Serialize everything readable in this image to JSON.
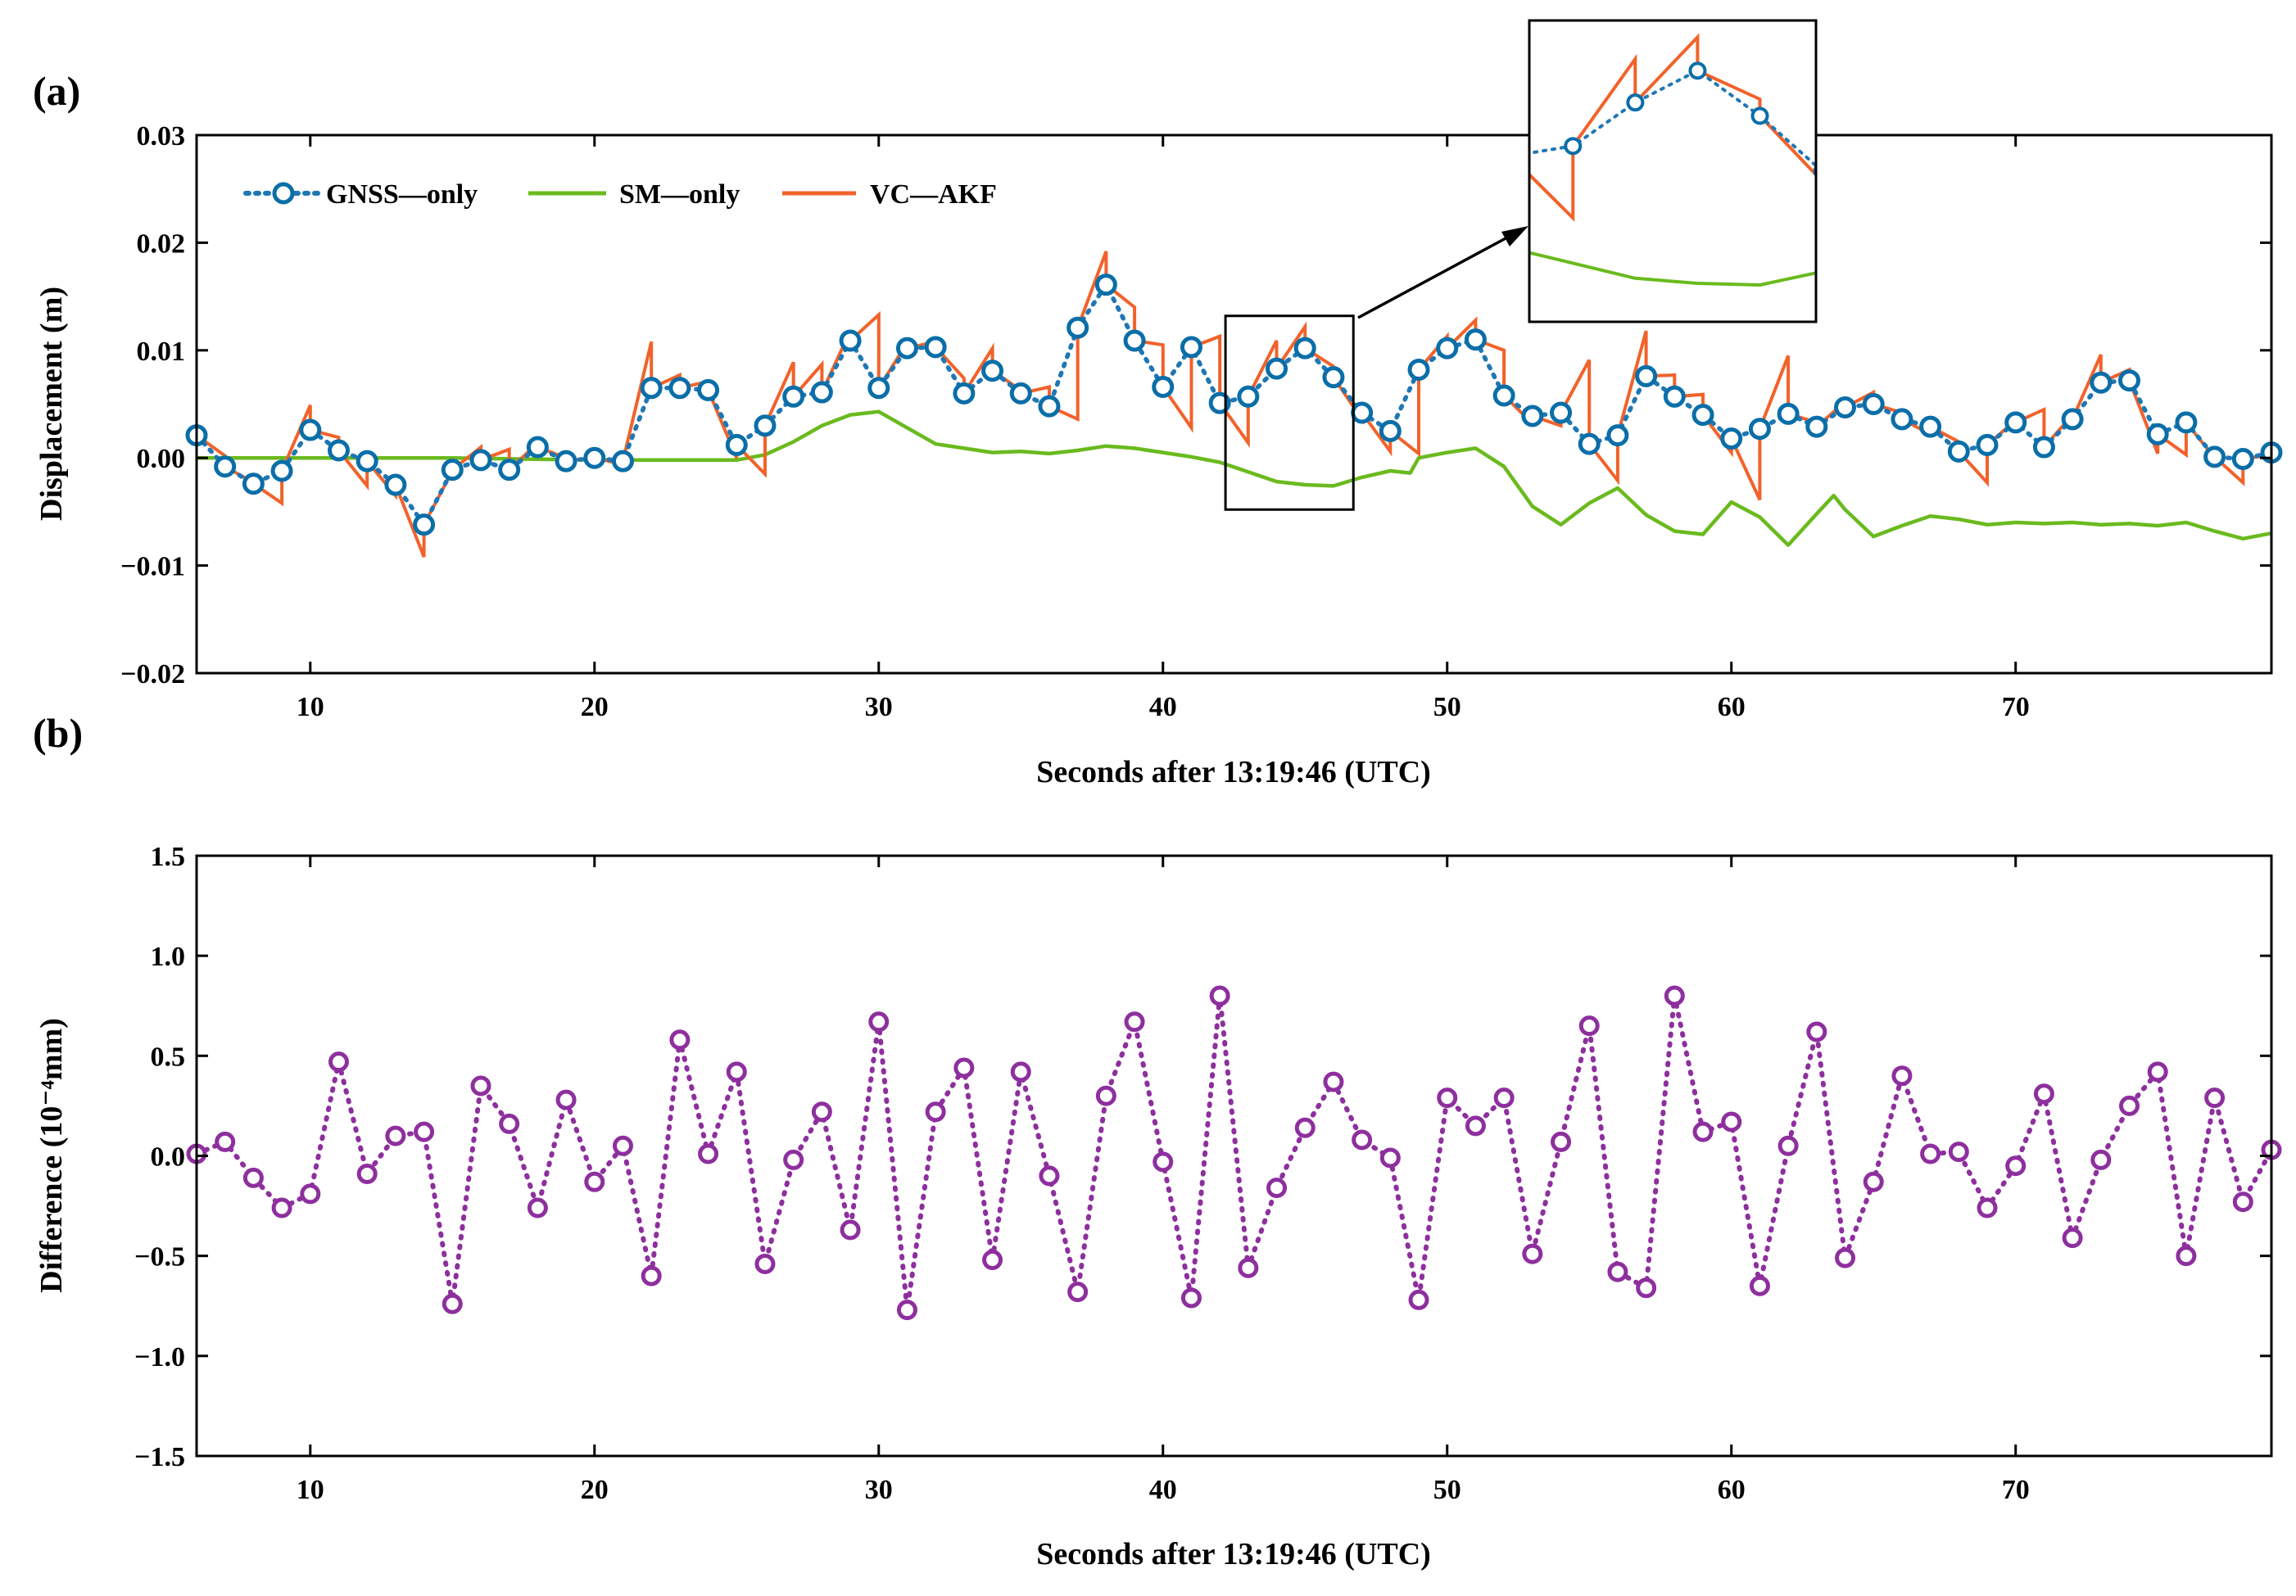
{
  "colors": {
    "gnss": "#1f77b4",
    "gnss_marker": "#0a6ea8",
    "sm": "#6aba1e",
    "vcakf": "#f2622a",
    "diff": "#8e2f9e"
  },
  "chart_data": [
    {
      "type": "line",
      "panel_label": "(a)",
      "xlabel": "Seconds after 13:19:46 (UTC)",
      "ylabel": "Displacement (m)",
      "xlim": [
        6,
        79
      ],
      "ylim": [
        -0.02,
        0.03
      ],
      "x_ticks": [
        10,
        20,
        30,
        40,
        50,
        60,
        70
      ],
      "y_ticks": [
        -0.02,
        -0.01,
        0.0,
        0.01,
        0.02,
        0.03
      ],
      "y_tick_labels": [
        "−0.02",
        "−0.01",
        "0.00",
        "0.01",
        "0.02",
        "0.03"
      ],
      "legend": [
        "GNSS—only",
        "SM—only",
        "VC—AKF"
      ],
      "series": [
        {
          "name": "GNSS—only",
          "style": "dotted line with circle markers",
          "x": [
            6,
            7,
            8,
            9,
            10,
            11,
            12,
            13,
            14,
            15,
            16,
            17,
            18,
            19,
            20,
            21,
            22,
            23,
            24,
            25,
            26,
            27,
            28,
            29,
            30,
            31,
            32,
            33,
            34,
            35,
            36,
            37,
            38,
            39,
            40,
            41,
            42,
            43,
            44,
            45,
            46,
            47,
            48,
            49,
            50,
            51,
            52,
            53,
            54,
            55,
            56,
            57,
            58,
            59,
            60,
            61,
            62,
            63,
            64,
            65,
            66,
            67,
            68,
            69,
            70,
            71,
            72,
            73,
            74,
            75,
            76,
            77,
            78,
            79
          ],
          "values": [
            0.0021,
            -0.0008,
            -0.0024,
            -0.0012,
            0.0026,
            0.0007,
            -0.0003,
            -0.0025,
            -0.0062,
            -0.0011,
            -0.0002,
            -0.0011,
            0.001,
            -0.0003,
            0.0,
            -0.0003,
            0.0065,
            0.0065,
            0.0063,
            0.0012,
            0.003,
            0.0057,
            0.0061,
            0.0109,
            0.0065,
            0.0102,
            0.0103,
            0.006,
            0.0081,
            0.006,
            0.0048,
            0.0121,
            0.0161,
            0.0109,
            0.0066,
            0.0103,
            0.0051,
            0.0057,
            0.0083,
            0.0102,
            0.0075,
            0.0042,
            0.0025,
            0.0082,
            0.0102,
            0.011,
            0.0058,
            0.0039,
            0.0042,
            0.0013,
            0.0021,
            0.0076,
            0.0057,
            0.004,
            0.0018,
            0.0027,
            0.0041,
            0.0029,
            0.0047,
            0.005,
            0.0036,
            0.0029,
            0.0006,
            0.0012,
            0.0033,
            0.001,
            0.0036,
            0.007,
            0.0072,
            0.0022,
            0.0033,
            0.0001,
            -0.0001,
            0.0005
          ]
        },
        {
          "name": "SM—only",
          "style": "solid line",
          "x": [
            6,
            10,
            15,
            20,
            24,
            25,
            26,
            27,
            28,
            29,
            30,
            31,
            32,
            33,
            34,
            35,
            36,
            37,
            38,
            39,
            40,
            41,
            42,
            43,
            44,
            45,
            46,
            46.5,
            47,
            48,
            48.7,
            49,
            50,
            51,
            52,
            53,
            54,
            55,
            56,
            57,
            58,
            59,
            60,
            61,
            62,
            63,
            63.6,
            64,
            65,
            66,
            67,
            68,
            69,
            70,
            71,
            72,
            73,
            74,
            75,
            76,
            77,
            78,
            79
          ],
          "values": [
            0.0,
            0.0,
            0.0,
            -0.0002,
            -0.0002,
            -0.0002,
            0.0003,
            0.0015,
            0.003,
            0.004,
            0.0043,
            0.0028,
            0.0013,
            0.0009,
            0.0005,
            0.0006,
            0.0004,
            0.0007,
            0.0011,
            0.0009,
            0.0005,
            0.0001,
            -0.0004,
            -0.0013,
            -0.0022,
            -0.0025,
            -0.0026,
            -0.0022,
            -0.0018,
            -0.0012,
            -0.0014,
            0.0,
            0.0005,
            0.0009,
            -0.0008,
            -0.0045,
            -0.0062,
            -0.0042,
            -0.0028,
            -0.0053,
            -0.0068,
            -0.0071,
            -0.0041,
            -0.0055,
            -0.0081,
            -0.0052,
            -0.0035,
            -0.0048,
            -0.0073,
            -0.0063,
            -0.0054,
            -0.0057,
            -0.0062,
            -0.006,
            -0.0061,
            -0.006,
            -0.0062,
            -0.0061,
            -0.0063,
            -0.006,
            -0.0068,
            -0.0075,
            -0.007
          ]
        },
        {
          "name": "VC—AKF",
          "style": "solid sawtooth line (drifts between GNSS epochs, resets at each epoch)",
          "drift_to_next": [
            0.0002,
            -0.0023,
            -0.0042,
            0.0049,
            0.0019,
            -0.0026,
            -0.0035,
            -0.0092,
            -0.0012,
            0.001,
            0.0008,
            0.0014,
            0.0,
            0.0,
            -0.0006,
            0.0108,
            0.0077,
            0.0071,
            0.0,
            -0.0015,
            0.0089,
            0.0087,
            0.0118,
            0.0133,
            0.0107,
            0.0108,
            0.0074,
            0.0102,
            0.0063,
            0.0066,
            0.0036,
            0.0192,
            0.014,
            0.0105,
            0.0028,
            0.0113,
            0.0014,
            0.0109,
            0.0122,
            0.0085,
            0.0036,
            0.0006,
            0.0004,
            0.0113,
            0.0128,
            0.01,
            0.0032,
            0.003,
            0.0091,
            -0.0021,
            0.0118,
            0.0077,
            0.0059,
            0.0005,
            -0.0039,
            0.0095,
            0.0033,
            0.0052,
            0.0061,
            0.0042,
            0.0022,
            0.0015,
            -0.0023,
            0.0035,
            0.0045,
            0.004,
            0.0096,
            0.0082,
            0.0004,
            0.0003,
            0.0,
            -0.0023,
            0.0003
          ]
        }
      ],
      "inset": {
        "x_range": [
          42.2,
          46.7
        ],
        "y_range": [
          -0.0048,
          0.0132
        ],
        "connector": "arrow"
      }
    },
    {
      "type": "scatter",
      "panel_label": "(b)",
      "xlabel": "Seconds after 13:19:46 (UTC)",
      "ylabel": "Difference (10⁻⁴mm)",
      "xlim": [
        6,
        79
      ],
      "ylim": [
        -1.5,
        1.5
      ],
      "x_ticks": [
        10,
        20,
        30,
        40,
        50,
        60,
        70
      ],
      "y_ticks": [
        -1.5,
        -1.0,
        -0.5,
        0.0,
        0.5,
        1.0,
        1.5
      ],
      "y_tick_labels": [
        "−1.5",
        "−1.0",
        "−0.5",
        "0.0",
        "0.5",
        "1.0",
        "1.5"
      ],
      "series": [
        {
          "name": "Difference",
          "style": "dotted line with circle markers",
          "x": [
            6,
            7,
            8,
            9,
            10,
            11,
            12,
            13,
            14,
            15,
            16,
            17,
            18,
            19,
            20,
            21,
            22,
            23,
            24,
            25,
            26,
            27,
            28,
            29,
            30,
            31,
            32,
            33,
            34,
            35,
            36,
            37,
            38,
            39,
            40,
            41,
            42,
            43,
            44,
            45,
            46,
            47,
            48,
            49,
            50,
            51,
            52,
            53,
            54,
            55,
            56,
            57,
            58,
            59,
            60,
            61,
            62,
            63,
            64,
            65,
            66,
            67,
            68,
            69,
            70,
            71,
            72,
            73,
            74,
            75,
            76,
            77,
            78,
            79
          ],
          "values": [
            0.01,
            0.07,
            -0.11,
            -0.26,
            -0.19,
            0.47,
            -0.09,
            0.1,
            0.12,
            -0.74,
            0.35,
            0.16,
            -0.26,
            0.28,
            -0.13,
            0.05,
            -0.6,
            0.58,
            0.01,
            0.42,
            -0.54,
            -0.02,
            0.22,
            -0.37,
            0.67,
            -0.77,
            0.22,
            0.44,
            -0.52,
            0.42,
            -0.1,
            -0.68,
            0.3,
            0.67,
            -0.03,
            -0.71,
            0.8,
            -0.56,
            -0.16,
            0.14,
            0.37,
            0.08,
            -0.01,
            -0.72,
            0.29,
            0.15,
            0.29,
            -0.49,
            0.07,
            0.65,
            -0.58,
            -0.66,
            0.8,
            0.12,
            0.17,
            -0.65,
            0.05,
            0.62,
            -0.51,
            -0.13,
            0.4,
            0.01,
            0.02,
            -0.26,
            -0.05,
            0.31,
            -0.41,
            -0.02,
            0.25,
            0.42,
            -0.5,
            0.29,
            -0.23,
            0.03
          ]
        }
      ]
    }
  ]
}
